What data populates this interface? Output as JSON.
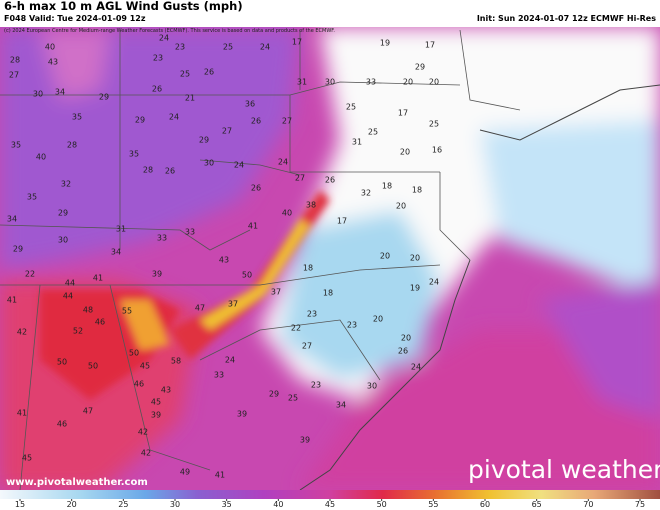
{
  "header": {
    "title": "6-h max 10 m AGL Wind Gusts (mph)",
    "valid": "F048 Valid: Tue 2024-01-09 12z",
    "init": "Init: Sun 2024-01-07 12z ECMWF Hi-Res",
    "copyright": "(c) 2024 European Centre for Medium-range Weather Forecasts (ECMWF). This service is based on data and products of the ECMWF."
  },
  "map": {
    "stations": [
      28,
      40,
      43,
      27,
      30,
      34,
      29,
      35,
      35,
      40,
      28,
      29,
      35,
      32,
      28,
      26,
      35,
      34,
      29,
      30,
      29,
      31,
      33,
      33,
      34,
      22,
      41,
      39,
      44,
      41,
      44,
      48,
      55,
      46,
      52,
      42,
      50,
      50,
      50,
      58,
      45,
      46,
      43,
      45,
      47,
      41,
      46,
      39,
      42,
      42,
      49,
      41,
      45,
      24,
      23,
      23,
      25,
      24,
      17,
      19,
      17,
      25,
      26,
      29,
      31,
      30,
      33,
      20,
      20,
      26,
      21,
      36,
      25,
      17,
      24,
      26,
      27,
      27,
      29,
      31,
      25,
      25,
      16,
      20,
      24,
      30,
      26,
      24,
      27,
      26,
      32,
      18,
      18,
      20,
      38,
      40,
      17,
      41,
      43,
      50,
      37,
      47,
      37,
      18,
      20,
      20,
      24,
      19,
      18,
      23,
      23,
      20,
      20,
      22,
      27,
      24,
      33,
      26,
      24,
      30,
      29,
      25,
      23,
      34,
      39,
      39
    ]
  },
  "footer": {
    "website": "www.pivotalweather.com",
    "logo": "pivotal weather"
  },
  "colorbar": {
    "ticks": [
      15,
      20,
      25,
      30,
      35,
      40,
      45,
      50,
      55,
      60,
      65,
      70,
      75
    ]
  }
}
